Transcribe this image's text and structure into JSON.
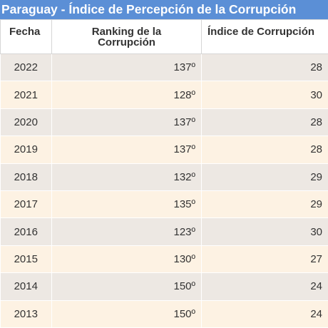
{
  "title": "Paraguay - Índice de Percepción de la Corrupción",
  "headers": {
    "fecha": "Fecha",
    "ranking_line1": "Ranking de la",
    "ranking_line2": "Corrupción",
    "indice": "Índice de Corrupción"
  },
  "rows": [
    {
      "year": "2022",
      "ranking": "137º",
      "index": "28"
    },
    {
      "year": "2021",
      "ranking": "128º",
      "index": "30"
    },
    {
      "year": "2020",
      "ranking": "137º",
      "index": "28"
    },
    {
      "year": "2019",
      "ranking": "137º",
      "index": "28"
    },
    {
      "year": "2018",
      "ranking": "132º",
      "index": "29"
    },
    {
      "year": "2017",
      "ranking": "135º",
      "index": "29"
    },
    {
      "year": "2016",
      "ranking": "123º",
      "index": "30"
    },
    {
      "year": "2015",
      "ranking": "130º",
      "index": "27"
    },
    {
      "year": "2014",
      "ranking": "150º",
      "index": "24"
    },
    {
      "year": "2013",
      "ranking": "150º",
      "index": "24"
    }
  ]
}
